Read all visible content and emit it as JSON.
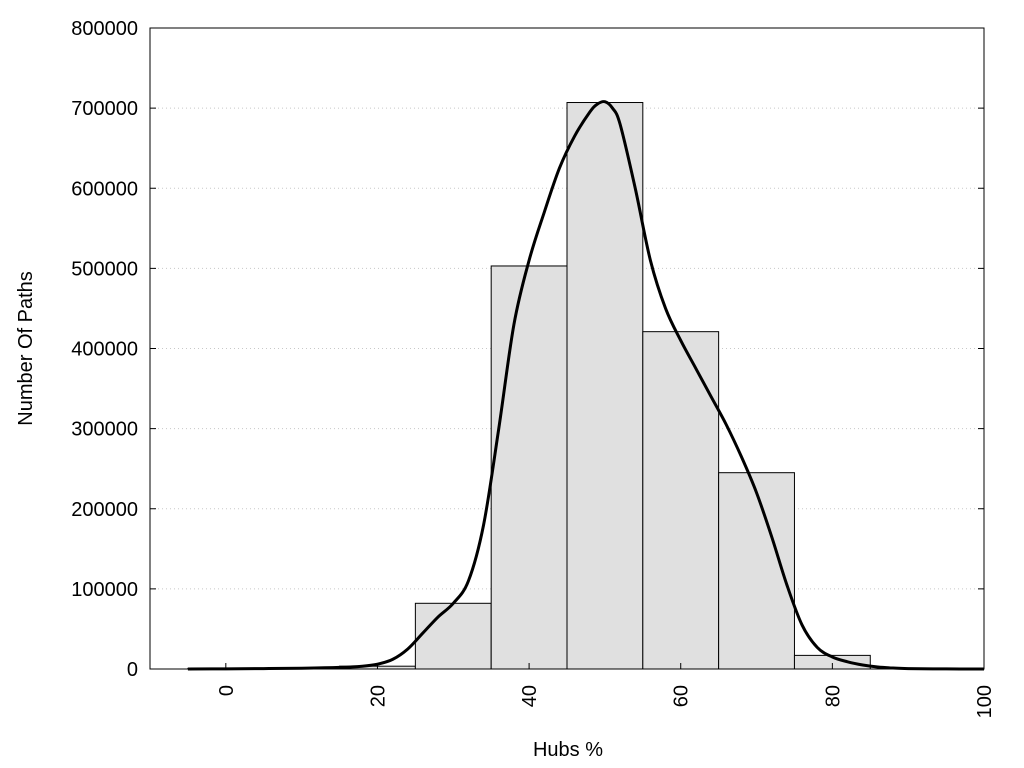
{
  "chart_data": {
    "type": "bar",
    "xlabel": "Hubs %",
    "ylabel": "Number Of Paths",
    "xlim": [
      -10,
      100
    ],
    "ylim": [
      0,
      800000
    ],
    "x_ticks": [
      0,
      20,
      40,
      60,
      80,
      100
    ],
    "y_ticks": [
      0,
      100000,
      200000,
      300000,
      400000,
      500000,
      600000,
      700000,
      800000
    ],
    "grid": "horizontal dotted",
    "bin_width": 10,
    "bins": [
      {
        "center": 0,
        "value": 800
      },
      {
        "center": 10,
        "value": 1200
      },
      {
        "center": 20,
        "value": 3500
      },
      {
        "center": 30,
        "value": 82000
      },
      {
        "center": 40,
        "value": 503000
      },
      {
        "center": 50,
        "value": 707000
      },
      {
        "center": 60,
        "value": 421000
      },
      {
        "center": 70,
        "value": 245000
      },
      {
        "center": 80,
        "value": 17000
      }
    ],
    "density_curve": {
      "x": [
        -5,
        0,
        5,
        10,
        15,
        18,
        20,
        22,
        24,
        26,
        28,
        30,
        32,
        34,
        36,
        38,
        40,
        42,
        44,
        46,
        48,
        49,
        50,
        51,
        52,
        54,
        56,
        58,
        60,
        62,
        64,
        66,
        68,
        70,
        72,
        74,
        76,
        78,
        80,
        82,
        84,
        86,
        88,
        90,
        95,
        100
      ],
      "y": [
        0,
        200,
        500,
        1000,
        2000,
        3500,
        6000,
        12000,
        25000,
        45000,
        65000,
        82000,
        110000,
        180000,
        300000,
        430000,
        510000,
        570000,
        625000,
        665000,
        695000,
        705000,
        708000,
        700000,
        680000,
        600000,
        510000,
        450000,
        410000,
        375000,
        340000,
        305000,
        265000,
        220000,
        165000,
        105000,
        55000,
        27000,
        15000,
        9000,
        5000,
        2500,
        1200,
        500,
        100,
        0
      ],
      "color": "#000000"
    },
    "bar_fill": "#e0e0e0",
    "bar_stroke": "#000000"
  }
}
